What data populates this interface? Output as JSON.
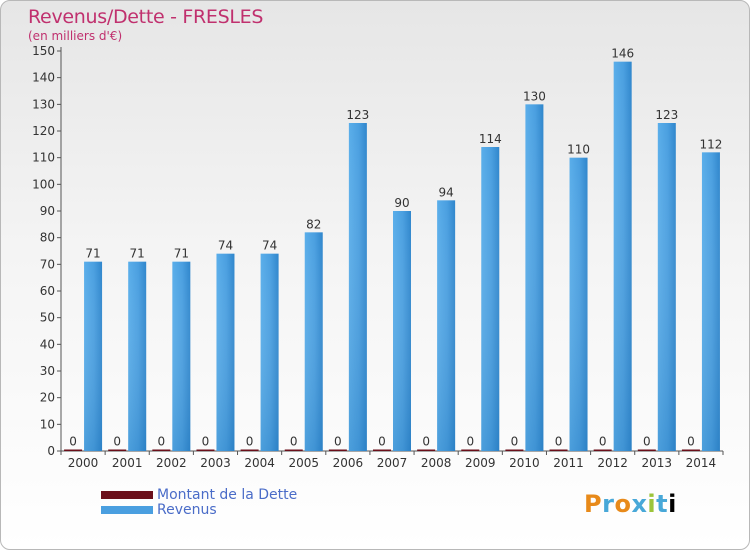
{
  "chart_data": {
    "type": "bar",
    "title": "Revenus/Dette - FRESLES",
    "subtitle": "(en milliers d'€)",
    "categories": [
      "2000",
      "2001",
      "2002",
      "2003",
      "2004",
      "2005",
      "2006",
      "2007",
      "2008",
      "2009",
      "2010",
      "2011",
      "2012",
      "2013",
      "2014"
    ],
    "series": [
      {
        "name": "Montant de la Dette",
        "values": [
          0,
          0,
          0,
          0,
          0,
          0,
          0,
          0,
          0,
          0,
          0,
          0,
          0,
          0,
          0
        ],
        "color": "#6b0f1a"
      },
      {
        "name": "Revenus",
        "values": [
          71,
          71,
          71,
          74,
          74,
          82,
          123,
          90,
          94,
          114,
          130,
          110,
          146,
          123,
          112
        ],
        "color": "#4a9fe0"
      }
    ],
    "yticks": [
      0,
      10,
      20,
      30,
      40,
      50,
      60,
      70,
      80,
      90,
      100,
      110,
      120,
      130,
      140,
      150
    ],
    "ylim": [
      0,
      150
    ],
    "grid": false,
    "legend": "bottom-left"
  },
  "legend": {
    "items": [
      {
        "label": "Montant de la Dette",
        "color": "#6b0f1a"
      },
      {
        "label": "Revenus",
        "color": "#4a9fe0"
      }
    ]
  },
  "logo": {
    "text": "Proxiti"
  }
}
